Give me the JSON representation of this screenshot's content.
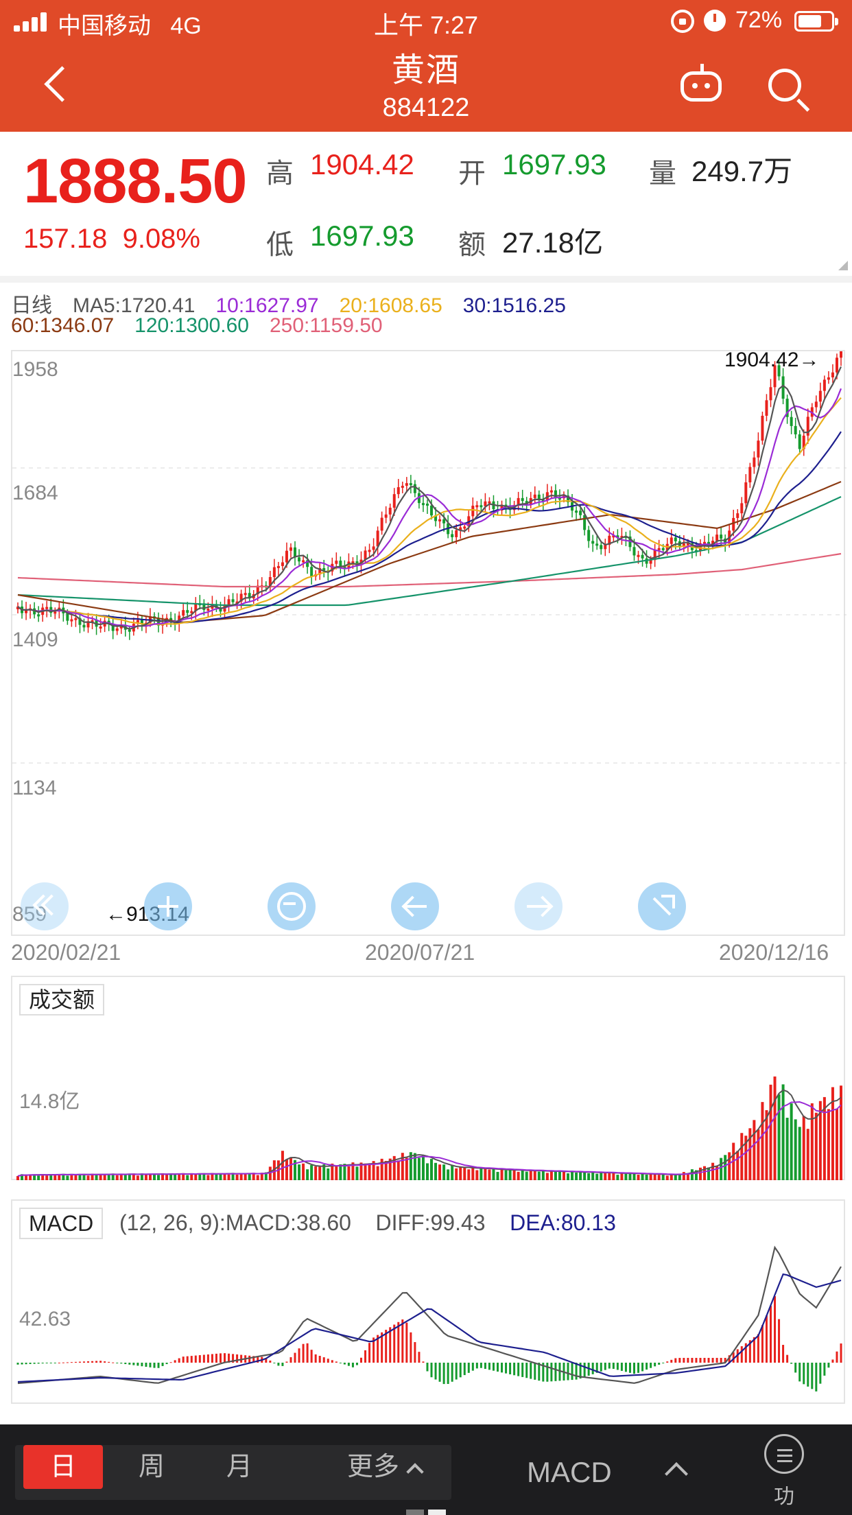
{
  "status_bar": {
    "carrier": "中国移动",
    "network": "4G",
    "time": "上午 7:27",
    "battery": "72%",
    "battery_level": 0.72
  },
  "nav": {
    "title": "黄酒",
    "code": "884122"
  },
  "quote": {
    "price": "1888.50",
    "change": "157.18",
    "change_pct": "9.08%",
    "high_label": "高",
    "high": "1904.42",
    "open_label": "开",
    "open": "1697.93",
    "volume_label": "量",
    "volume": "249.7万",
    "low_label": "低",
    "low": "1697.93",
    "amount_label": "额",
    "amount": "27.18亿"
  },
  "ma_legend": {
    "period": "日线",
    "ma5": "MA5:1720.41",
    "ma10": "10:1627.97",
    "ma20": "20:1608.65",
    "ma30": "30:1516.25",
    "ma60": "60:1346.07",
    "ma120": "120:1300.60",
    "ma250": "250:1159.50"
  },
  "colors": {
    "header": "#e04a28",
    "up": "#e8211c",
    "down": "#159b2e",
    "ma5": "#555555",
    "ma10": "#9a2bd6",
    "ma20": "#eab01c",
    "ma30": "#1d1f8e",
    "ma60": "#8b3a12",
    "ma120": "#15936a",
    "ma250": "#e06077"
  },
  "kline": {
    "y_ticks": [
      "1958",
      "1684",
      "1409",
      "1134",
      "859"
    ],
    "high_marker": "1904.42→",
    "low_marker": "←913.14",
    "dates": [
      "2020/02/21",
      "2020/07/21",
      "2020/12/16"
    ]
  },
  "amount_panel": {
    "tag": "成交额",
    "tick": "14.8亿"
  },
  "macd_panel": {
    "tag": "MACD",
    "params": "(12, 26, 9):MACD:38.60",
    "diff": "DIFF:99.43",
    "dea": "DEA:80.13",
    "tick": "42.63"
  },
  "bottom_bar": {
    "day": "日",
    "week": "周",
    "month": "月",
    "more": "更多",
    "indicator": "MACD",
    "function": "功能"
  }
}
